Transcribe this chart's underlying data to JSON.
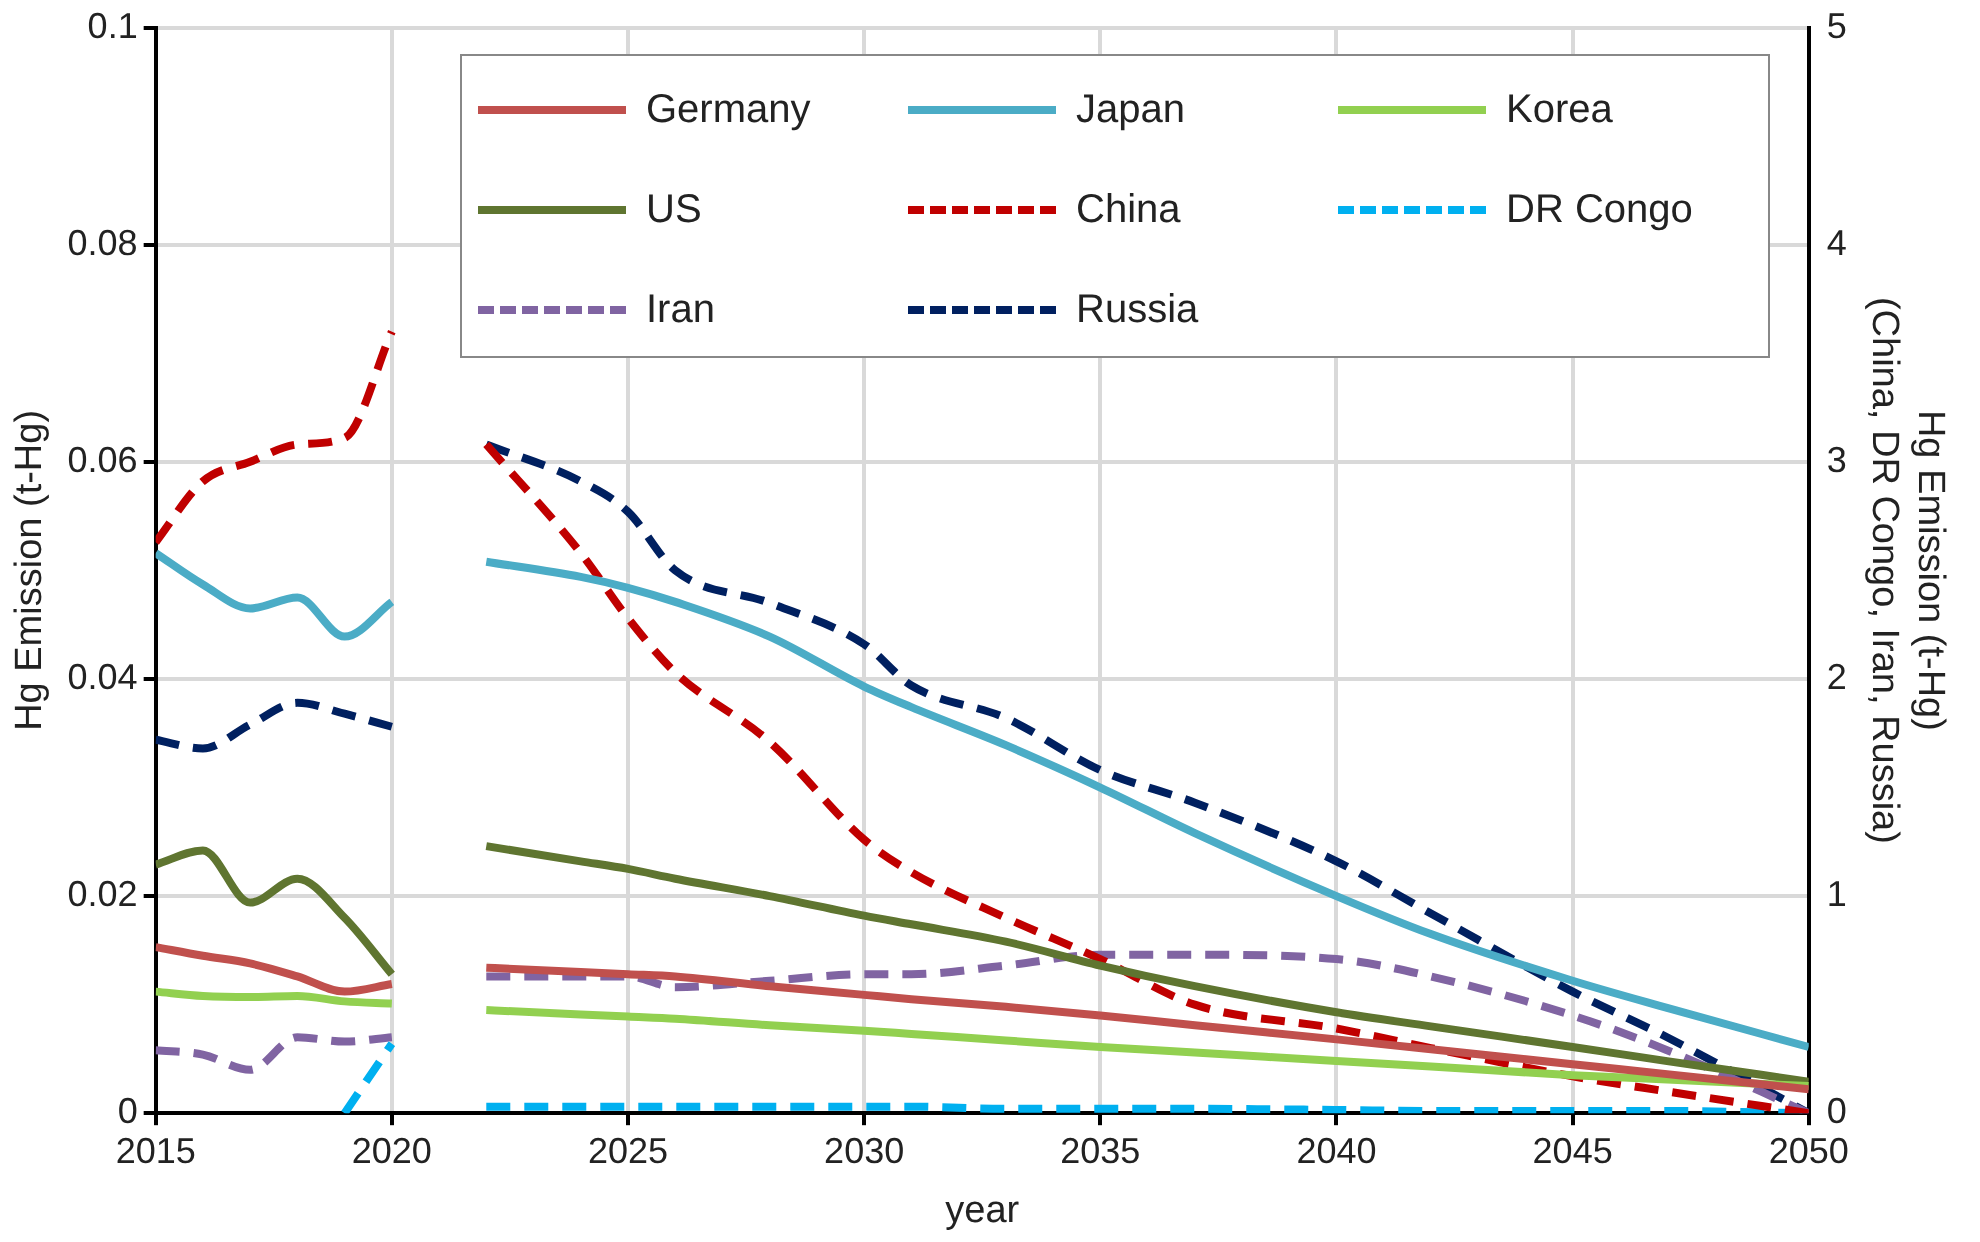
{
  "chart_data": {
    "type": "line",
    "xlabel": "year",
    "ylabel": "Hg Emission (t-Hg)",
    "y2label": "Hg Emission (t-Hg)\n(China, DR Congo, Iran, Russia)",
    "x": [
      2015,
      2016,
      2017,
      2018,
      2019,
      2020,
      2021,
      2022,
      2024,
      2025,
      2026,
      2028,
      2030,
      2031,
      2033,
      2035,
      2037,
      2040,
      2042,
      2045,
      2047,
      2050
    ],
    "xlim": [
      2015,
      2050
    ],
    "xticks": [
      2015,
      2020,
      2025,
      2030,
      2035,
      2040,
      2045,
      2050
    ],
    "ylim": [
      0,
      0.1
    ],
    "yticks": [
      0,
      0.02,
      0.04,
      0.06,
      0.08,
      0.1
    ],
    "y2lim": [
      0,
      5
    ],
    "y2ticks": [
      0,
      1,
      2,
      3,
      4,
      5
    ],
    "grid": true,
    "legend": "top",
    "marker": "none",
    "series": [
      {
        "name": "Germany",
        "color": "#c0504d",
        "line_style": "solid",
        "values": [
          0.0153,
          0.0145,
          0.0138,
          0.0126,
          0.0112,
          0.0119,
          null,
          0.0134,
          0.013,
          0.0128,
          0.0126,
          0.0117,
          0.0109,
          0.0105,
          0.0098,
          0.009,
          0.0081,
          0.0068,
          0.0059,
          0.0045,
          0.0036,
          0.0022
        ]
      },
      {
        "name": "Japan",
        "color": "#4bacc6",
        "line_style": "solid",
        "values": [
          0.0516,
          0.0487,
          0.0465,
          0.0475,
          0.0439,
          0.0471,
          null,
          0.0508,
          0.0494,
          0.0484,
          0.0471,
          0.0439,
          0.0393,
          0.0374,
          0.0339,
          0.03,
          0.0258,
          0.02,
          0.0165,
          0.0122,
          0.0097,
          0.0061
        ]
      },
      {
        "name": "Korea",
        "color": "#92d050",
        "line_style": "solid",
        "values": [
          0.0112,
          0.0108,
          0.0107,
          0.0108,
          0.0103,
          0.0101,
          null,
          0.0095,
          0.0091,
          0.0089,
          0.0087,
          0.0081,
          0.0076,
          0.0073,
          0.0067,
          0.0061,
          0.0056,
          0.0048,
          0.0043,
          0.0035,
          0.0031,
          0.0025
        ]
      },
      {
        "name": "US",
        "color": "#5f7530",
        "line_style": "solid",
        "values": [
          0.0229,
          0.0242,
          0.0194,
          0.0216,
          0.018,
          0.0128,
          null,
          0.0246,
          0.0232,
          0.0225,
          0.0216,
          0.02,
          0.0182,
          0.0174,
          0.0158,
          0.0136,
          0.0117,
          0.0093,
          0.008,
          0.0061,
          0.0048,
          0.0029
        ]
      },
      {
        "name": "China",
        "color": "#c00000",
        "line_style": "dashed",
        "axis": "y2",
        "values": [
          2.63,
          2.91,
          3.0,
          3.08,
          3.11,
          3.6,
          null,
          3.08,
          2.58,
          2.28,
          2.03,
          1.71,
          1.26,
          1.11,
          0.9,
          0.71,
          0.5,
          0.39,
          0.3,
          0.17,
          0.1,
          0
        ]
      },
      {
        "name": "DR Congo",
        "color": "#00b0f0",
        "line_style": "dashed",
        "axis": "y2",
        "values": [
          null,
          null,
          null,
          null,
          0,
          0.32,
          null,
          0.03,
          0.03,
          0.03,
          0.03,
          0.03,
          0.03,
          0.03,
          0.02,
          0.02,
          0.02,
          0.015,
          0.01,
          0.01,
          0.01,
          0
        ]
      },
      {
        "name": "Iran",
        "color": "#8064a2",
        "line_style": "dashed",
        "axis": "y2",
        "values": [
          0.29,
          0.27,
          0.2,
          0.35,
          0.33,
          0.35,
          null,
          0.63,
          0.63,
          0.63,
          0.58,
          0.61,
          0.64,
          0.64,
          0.68,
          0.73,
          0.73,
          0.71,
          0.63,
          0.45,
          0.29,
          0
        ]
      },
      {
        "name": "Russia",
        "color": "#002060",
        "line_style": "dashed",
        "axis": "y2",
        "values": [
          1.72,
          1.68,
          1.79,
          1.89,
          1.84,
          1.78,
          null,
          3.08,
          2.91,
          2.77,
          2.5,
          2.35,
          2.16,
          1.97,
          1.82,
          1.58,
          1.43,
          1.16,
          0.92,
          0.56,
          0.35,
          0
        ]
      }
    ]
  }
}
